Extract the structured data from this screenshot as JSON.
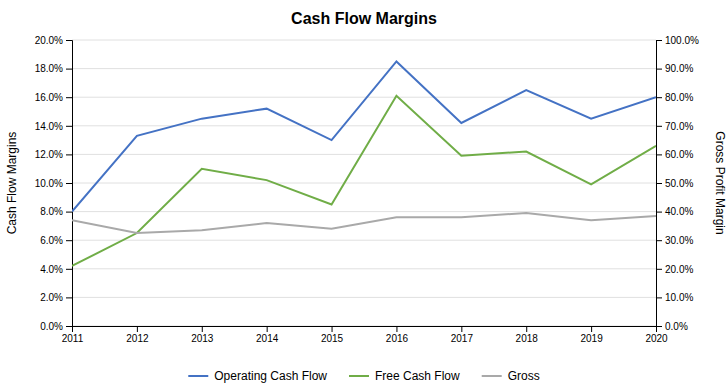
{
  "chart_data": {
    "type": "line",
    "title": "Cash Flow Margins",
    "ylabel": "Cash Flow Margins",
    "y2label": "Gross Profit Margin",
    "x": [
      2011,
      2012,
      2013,
      2014,
      2015,
      2016,
      2017,
      2018,
      2019,
      2020
    ],
    "xlim": [
      2011,
      2020
    ],
    "xticks": [
      2011,
      2012,
      2013,
      2014,
      2015,
      2016,
      2017,
      2018,
      2019,
      2020
    ],
    "series": [
      {
        "name": "Operating Cash Flow",
        "color": "#4472C4",
        "values": [
          0.08,
          0.133,
          0.145,
          0.152,
          0.13,
          0.185,
          0.142,
          0.165,
          0.145,
          0.16
        ]
      },
      {
        "name": "Free Cash Flow",
        "color": "#70AD47",
        "values": [
          0.042,
          0.065,
          0.11,
          0.102,
          0.085,
          0.161,
          0.119,
          0.122,
          0.099,
          0.126
        ]
      },
      {
        "name": "Gross",
        "color": "#A9A9A9",
        "values": [
          0.074,
          0.065,
          0.067,
          0.072,
          0.068,
          0.076,
          0.076,
          0.079,
          0.074,
          0.077
        ]
      }
    ],
    "ylim": [
      0.0,
      0.2
    ],
    "yticks": [
      {
        "value": 0.0,
        "label": "0.0%"
      },
      {
        "value": 0.02,
        "label": "2.0%"
      },
      {
        "value": 0.04,
        "label": "4.0%"
      },
      {
        "value": 0.06,
        "label": "6.0%"
      },
      {
        "value": 0.08,
        "label": "8.0%"
      },
      {
        "value": 0.1,
        "label": "10.0%"
      },
      {
        "value": 0.12,
        "label": "12.0%"
      },
      {
        "value": 0.14,
        "label": "14.0%"
      },
      {
        "value": 0.16,
        "label": "16.0%"
      },
      {
        "value": 0.18,
        "label": "18.0%"
      },
      {
        "value": 0.2,
        "label": "20.0%"
      }
    ],
    "y2lim": [
      0.0,
      1.0
    ],
    "y2ticks": [
      {
        "value": 0.0,
        "label": "0.0%"
      },
      {
        "value": 0.1,
        "label": "10.0%"
      },
      {
        "value": 0.2,
        "label": "20.0%"
      },
      {
        "value": 0.3,
        "label": "30.0%"
      },
      {
        "value": 0.4,
        "label": "40.0%"
      },
      {
        "value": 0.5,
        "label": "50.0%"
      },
      {
        "value": 0.6,
        "label": "60.0%"
      },
      {
        "value": 0.7,
        "label": "70.0%"
      },
      {
        "value": 0.8,
        "label": "80.0%"
      },
      {
        "value": 0.9,
        "label": "90.0%"
      },
      {
        "value": 1.0,
        "label": "100.0%"
      }
    ],
    "grid": true,
    "legend": "bottom"
  }
}
